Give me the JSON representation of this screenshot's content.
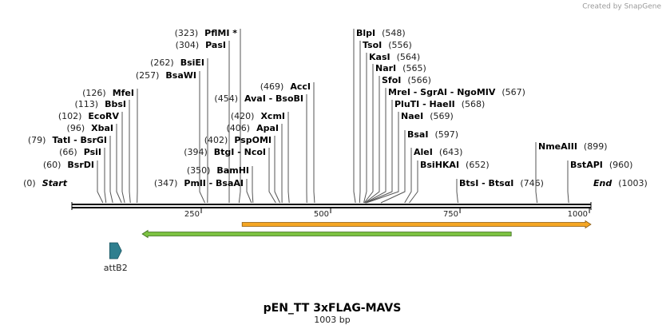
{
  "watermark": "Created by SnapGene",
  "title": "pEN_TT 3xFLAG-MAVS",
  "length_label": "1003 bp",
  "length": 1003,
  "ruler_ticks": [
    250,
    500,
    750,
    1000
  ],
  "ends": [
    {
      "name": "Start",
      "position": 0,
      "position_label": "(0)"
    },
    {
      "name": "End",
      "position": 1003,
      "position_label": "(1003)"
    }
  ],
  "sites": [
    {
      "label": "PflMI *",
      "position": 323,
      "position_label": "(323)"
    },
    {
      "label": "PasI",
      "position": 304,
      "position_label": "(304)"
    },
    {
      "label": "BsiEI",
      "position": 262,
      "position_label": "(262)"
    },
    {
      "label": "BsaWI",
      "position": 257,
      "position_label": "(257)"
    },
    {
      "label": "MfeI",
      "position": 126,
      "position_label": "(126)"
    },
    {
      "label": "BbsI",
      "position": 113,
      "position_label": "(113)"
    },
    {
      "label": "EcoRV",
      "position": 102,
      "position_label": "(102)"
    },
    {
      "label": "XbaI",
      "position": 96,
      "position_label": "(96)"
    },
    {
      "label": "TatI - BsrGI",
      "position": 79,
      "position_label": "(79)"
    },
    {
      "label": "PsiI",
      "position": 66,
      "position_label": "(66)"
    },
    {
      "label": "BsrDI",
      "position": 60,
      "position_label": "(60)"
    },
    {
      "label": "PmlI - BsaAI",
      "position": 347,
      "position_label": "(347)"
    },
    {
      "label": "BamHI",
      "position": 350,
      "position_label": "(350)"
    },
    {
      "label": "BtgI - NcoI",
      "position": 394,
      "position_label": "(394)"
    },
    {
      "label": "PspOMI",
      "position": 402,
      "position_label": "(402)"
    },
    {
      "label": "ApaI",
      "position": 406,
      "position_label": "(406)"
    },
    {
      "label": "XcmI",
      "position": 420,
      "position_label": "(420)"
    },
    {
      "label": "AvaI - BsoBI",
      "position": 454,
      "position_label": "(454)"
    },
    {
      "label": "AccI",
      "position": 469,
      "position_label": "(469)"
    },
    {
      "label": "BlpI",
      "position": 548,
      "position_label": "(548)"
    },
    {
      "label": "TsoI",
      "position": 556,
      "position_label": "(556)"
    },
    {
      "label": "KasI",
      "position": 564,
      "position_label": "(564)"
    },
    {
      "label": "NarI",
      "position": 565,
      "position_label": "(565)"
    },
    {
      "label": "SfoI",
      "position": 566,
      "position_label": "(566)"
    },
    {
      "label": "MreI - SgrAI - NgoMIV",
      "position": 567,
      "position_label": "(567)"
    },
    {
      "label": "PluTI - HaeII",
      "position": 568,
      "position_label": "(568)"
    },
    {
      "label": "NaeI",
      "position": 569,
      "position_label": "(569)"
    },
    {
      "label": "BsaI",
      "position": 597,
      "position_label": "(597)"
    },
    {
      "label": "AleI",
      "position": 643,
      "position_label": "(643)"
    },
    {
      "label": "BsiHKAI",
      "position": 652,
      "position_label": "(652)"
    },
    {
      "label": "BtsI - BtsαI",
      "position": 746,
      "position_label": "(746)"
    },
    {
      "label": "NmeAIII",
      "position": 899,
      "position_label": "(899)"
    },
    {
      "label": "BstAPI",
      "position": 960,
      "position_label": "(960)"
    }
  ],
  "features": [
    {
      "name": "attB2",
      "start": 73,
      "end": 96,
      "color": "#2f7f8f"
    },
    {
      "start": 329,
      "end": 1003,
      "color": "#f5a623",
      "direction": "forward"
    },
    {
      "start": 136,
      "end": 849,
      "color": "#7cc242",
      "direction": "reverse"
    }
  ]
}
